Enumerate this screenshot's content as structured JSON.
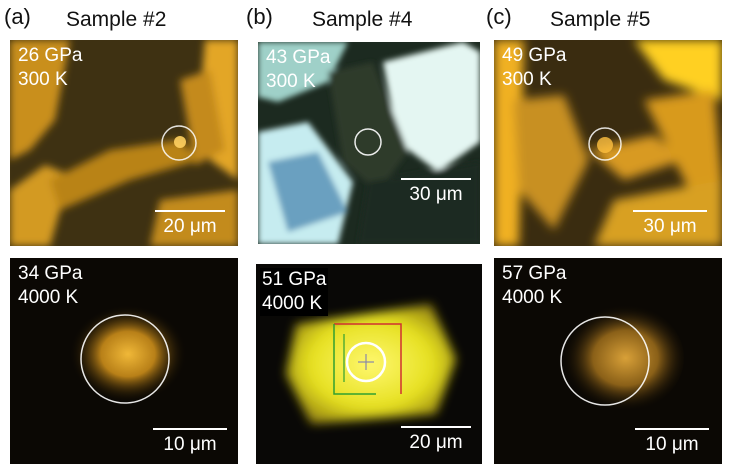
{
  "panels": [
    {
      "label": "(a)",
      "title": "Sample #2",
      "top": {
        "pressure": "26 GPa",
        "temperature": "300 K",
        "scale": "20 μm"
      },
      "bottom": {
        "pressure": "34 GPa",
        "temperature": "4000 K",
        "scale": "10 μm"
      }
    },
    {
      "label": "(b)",
      "title": "Sample #4",
      "top": {
        "pressure": "43 GPa",
        "temperature": "300 K",
        "scale": "30 μm"
      },
      "bottom": {
        "pressure": "51 GPa",
        "temperature": "4000 K",
        "scale": "20 μm"
      }
    },
    {
      "label": "(c)",
      "title": "Sample #5",
      "top": {
        "pressure": "49 GPa",
        "temperature": "300 K",
        "scale": "30 μm"
      },
      "bottom": {
        "pressure": "57 GPa",
        "temperature": "4000 K",
        "scale": "10 μm"
      }
    }
  ],
  "colors": {
    "gold": "#e0a020",
    "dark_bronze": "#3a2c10",
    "cyan_white": "#d8f2f0",
    "glow_yellow": "#f0e020"
  }
}
